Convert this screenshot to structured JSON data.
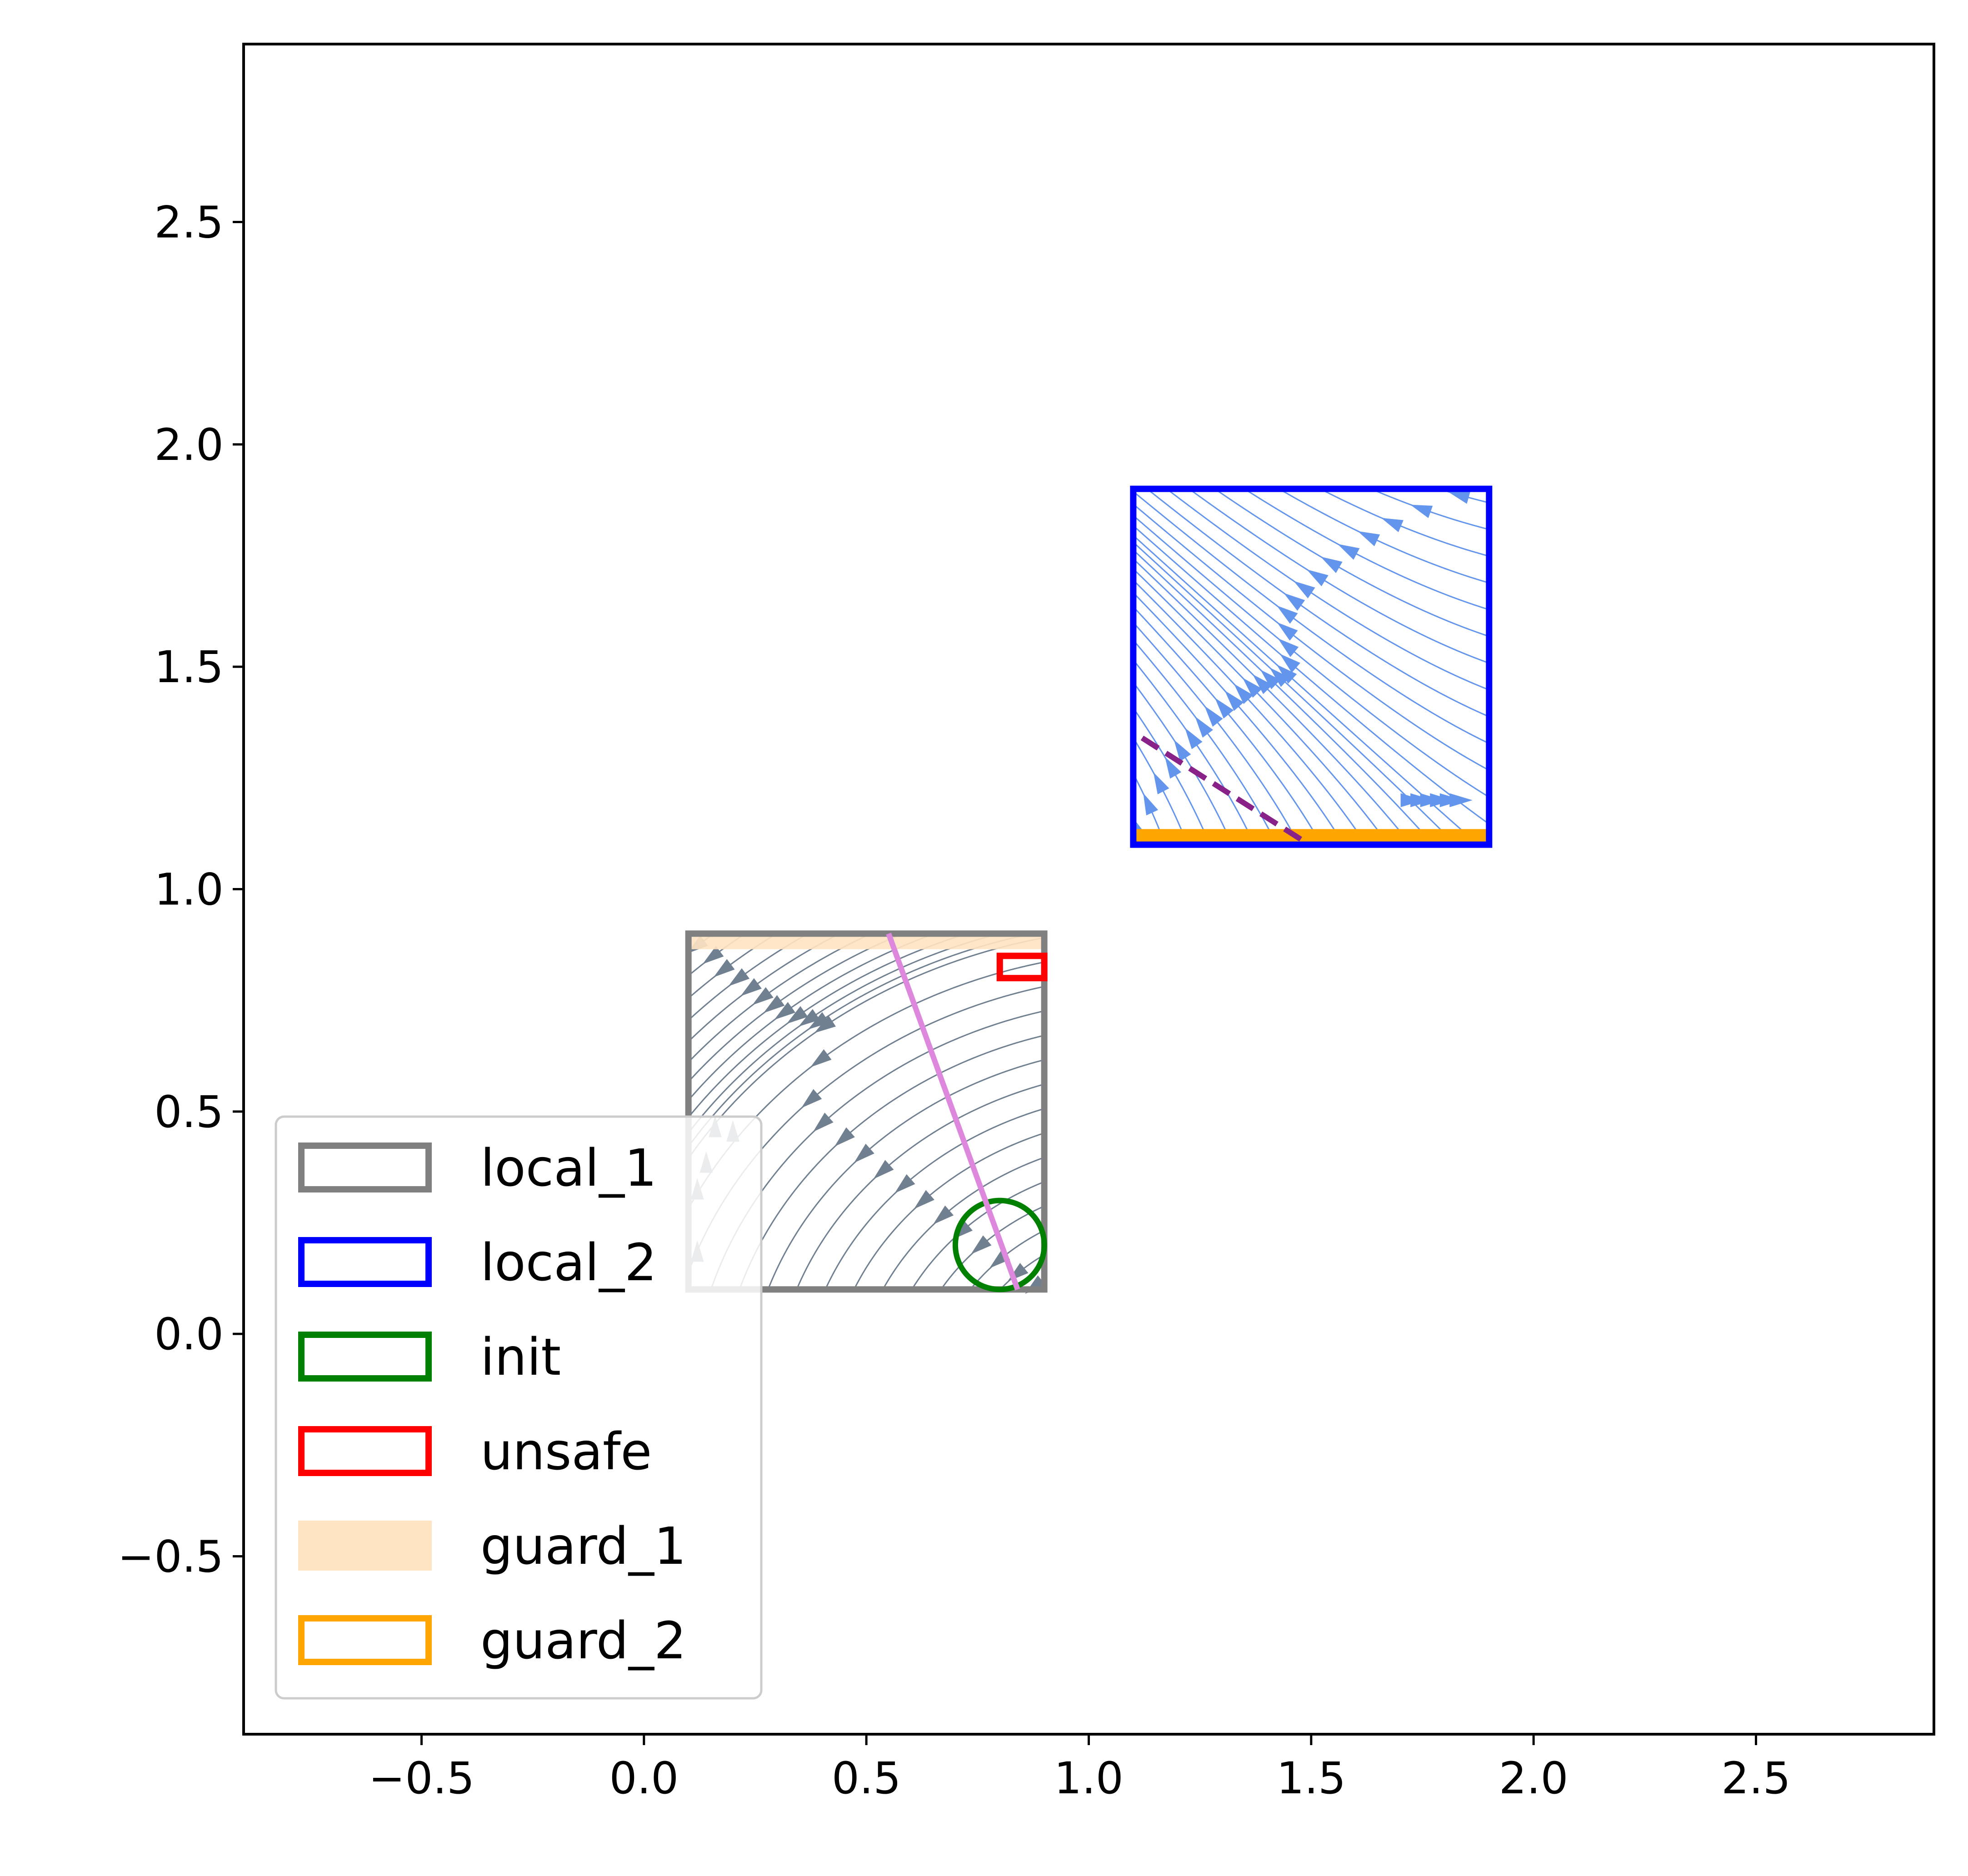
{
  "chart_data": {
    "type": "scatter",
    "title": "",
    "xlabel": "",
    "ylabel": "",
    "xlim": [
      -0.9,
      2.9
    ],
    "ylim": [
      -0.9,
      2.9
    ],
    "xticks": [
      -0.5,
      0.0,
      0.5,
      1.0,
      1.5,
      2.0,
      2.5
    ],
    "yticks": [
      -0.5,
      0.0,
      0.5,
      1.0,
      1.5,
      2.0,
      2.5
    ],
    "xtick_labels": [
      "−0.5",
      "0.0",
      "0.5",
      "1.0",
      "1.5",
      "2.0",
      "2.5"
    ],
    "ytick_labels": [
      "−0.5",
      "0.0",
      "0.5",
      "1.0",
      "1.5",
      "2.0",
      "2.5"
    ],
    "grid": false,
    "legend_position": "lower-left",
    "regions": [
      {
        "name": "local_1",
        "color": "#808080",
        "shape": "rect",
        "x": [
          0.1,
          0.9
        ],
        "y": [
          0.1,
          0.9
        ]
      },
      {
        "name": "local_2",
        "color": "#0000ff",
        "shape": "rect",
        "x": [
          1.1,
          1.9
        ],
        "y": [
          1.1,
          1.9
        ]
      },
      {
        "name": "init",
        "color": "#008000",
        "shape": "circle",
        "center": [
          0.8,
          0.2
        ],
        "radius": 0.1
      },
      {
        "name": "unsafe",
        "color": "#ff0000",
        "shape": "rect",
        "x": [
          0.8,
          0.9
        ],
        "y": [
          0.8,
          0.85
        ]
      },
      {
        "name": "guard_1",
        "color": "#ffe4c4",
        "shape": "rect",
        "x": [
          0.1,
          0.9
        ],
        "y": [
          0.87,
          0.9
        ]
      },
      {
        "name": "guard_2",
        "color": "#ffa500",
        "shape": "rect",
        "x": [
          1.1,
          1.9
        ],
        "y": [
          1.1,
          1.13
        ]
      }
    ],
    "lines": [
      {
        "color": "#dd88dd",
        "style": "solid",
        "points": [
          [
            0.55,
            0.9
          ],
          [
            0.84,
            0.1
          ]
        ]
      },
      {
        "color": "#882288",
        "style": "dashed",
        "points": [
          [
            1.12,
            1.34
          ],
          [
            1.48,
            1.11
          ]
        ]
      }
    ],
    "streamplots": [
      {
        "region": "local_1",
        "color": "#708090"
      },
      {
        "region": "local_2",
        "color": "#6495ed"
      }
    ]
  }
}
